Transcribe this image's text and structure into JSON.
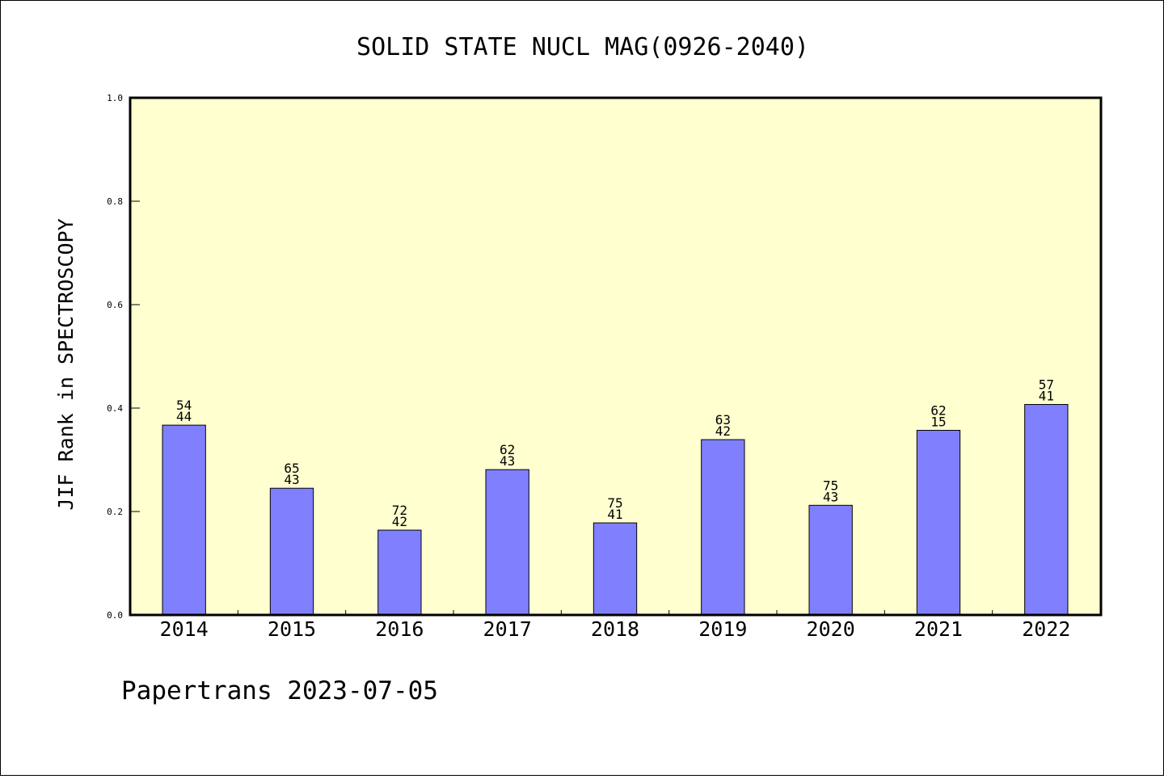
{
  "chart_data": {
    "type": "bar",
    "title": "SOLID STATE NUCL MAG(0926-2040)",
    "ylabel": "JIF Rank in SPECTROSCOPY",
    "xlabel": "",
    "categories": [
      "2014",
      "2015",
      "2016",
      "2017",
      "2018",
      "2019",
      "2020",
      "2021",
      "2022"
    ],
    "series": [
      {
        "values": [
          0.367,
          0.245,
          0.164,
          0.281,
          0.178,
          0.339,
          0.212,
          0.357,
          0.407
        ],
        "label_top": [
          "54",
          "65",
          "72",
          "62",
          "75",
          "63",
          "75",
          "62",
          "57"
        ],
        "label_bottom": [
          "44",
          "43",
          "42",
          "43",
          "41",
          "42",
          "43",
          "15",
          "41"
        ]
      }
    ],
    "ylim": [
      0,
      1.0
    ],
    "yticks": [
      "0.0",
      "0.2",
      "0.4",
      "0.6",
      "0.8",
      "1.0"
    ],
    "grid": false,
    "colors": {
      "plot_background": "#ffffd0",
      "bar_fill": "#8080ff",
      "bar_stroke": "#000000"
    }
  },
  "footer": {
    "text": "Papertrans 2023-07-05"
  }
}
